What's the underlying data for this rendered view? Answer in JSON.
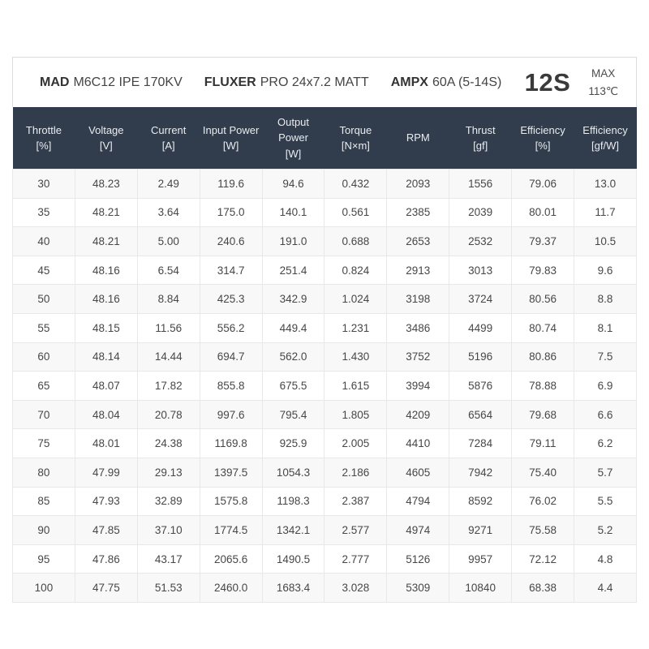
{
  "header": {
    "products": [
      {
        "brand": "MAD",
        "model": "M6C12 IPE 170KV"
      },
      {
        "brand": "FLUXER",
        "model": "PRO 24x7.2 MATT"
      },
      {
        "brand": "AMPX",
        "model": "60A (5-14S)"
      }
    ],
    "battery": "12S",
    "max_label": "MAX",
    "max_temp": "113℃"
  },
  "table": {
    "columns": [
      {
        "title": "Throttle",
        "unit": "[%]"
      },
      {
        "title": "Voltage",
        "unit": "[V]"
      },
      {
        "title": "Current",
        "unit": "[A]"
      },
      {
        "title": "Input Power",
        "unit": "[W]"
      },
      {
        "title": "Output Power",
        "unit": "[W]"
      },
      {
        "title": "Torque",
        "unit": "[N×m]"
      },
      {
        "title": "RPM",
        "unit": ""
      },
      {
        "title": "Thrust",
        "unit": "[gf]"
      },
      {
        "title": "Efficiency",
        "unit": "[%]"
      },
      {
        "title": "Efficiency",
        "unit": "[gf/W]"
      }
    ],
    "rows": [
      [
        "30",
        "48.23",
        "2.49",
        "119.6",
        "94.6",
        "0.432",
        "2093",
        "1556",
        "79.06",
        "13.0"
      ],
      [
        "35",
        "48.21",
        "3.64",
        "175.0",
        "140.1",
        "0.561",
        "2385",
        "2039",
        "80.01",
        "11.7"
      ],
      [
        "40",
        "48.21",
        "5.00",
        "240.6",
        "191.0",
        "0.688",
        "2653",
        "2532",
        "79.37",
        "10.5"
      ],
      [
        "45",
        "48.16",
        "6.54",
        "314.7",
        "251.4",
        "0.824",
        "2913",
        "3013",
        "79.83",
        "9.6"
      ],
      [
        "50",
        "48.16",
        "8.84",
        "425.3",
        "342.9",
        "1.024",
        "3198",
        "3724",
        "80.56",
        "8.8"
      ],
      [
        "55",
        "48.15",
        "11.56",
        "556.2",
        "449.4",
        "1.231",
        "3486",
        "4499",
        "80.74",
        "8.1"
      ],
      [
        "60",
        "48.14",
        "14.44",
        "694.7",
        "562.0",
        "1.430",
        "3752",
        "5196",
        "80.86",
        "7.5"
      ],
      [
        "65",
        "48.07",
        "17.82",
        "855.8",
        "675.5",
        "1.615",
        "3994",
        "5876",
        "78.88",
        "6.9"
      ],
      [
        "70",
        "48.04",
        "20.78",
        "997.6",
        "795.4",
        "1.805",
        "4209",
        "6564",
        "79.68",
        "6.6"
      ],
      [
        "75",
        "48.01",
        "24.38",
        "1169.8",
        "925.9",
        "2.005",
        "4410",
        "7284",
        "79.11",
        "6.2"
      ],
      [
        "80",
        "47.99",
        "29.13",
        "1397.5",
        "1054.3",
        "2.186",
        "4605",
        "7942",
        "75.40",
        "5.7"
      ],
      [
        "85",
        "47.93",
        "32.89",
        "1575.8",
        "1198.3",
        "2.387",
        "4794",
        "8592",
        "76.02",
        "5.5"
      ],
      [
        "90",
        "47.85",
        "37.10",
        "1774.5",
        "1342.1",
        "2.577",
        "4974",
        "9271",
        "75.58",
        "5.2"
      ],
      [
        "95",
        "47.86",
        "43.17",
        "2065.6",
        "1490.5",
        "2.777",
        "5126",
        "9957",
        "72.12",
        "4.8"
      ],
      [
        "100",
        "47.75",
        "51.53",
        "2460.0",
        "1683.4",
        "3.028",
        "5309",
        "10840",
        "68.38",
        "4.4"
      ]
    ]
  },
  "colors": {
    "table_header_bg": "#313d4d",
    "table_header_text": "#e9ecf0",
    "row_stripe": "#f8f8f9",
    "border": "#e7e8ea",
    "card_border": "#dcdcdc",
    "text": "#474747"
  }
}
